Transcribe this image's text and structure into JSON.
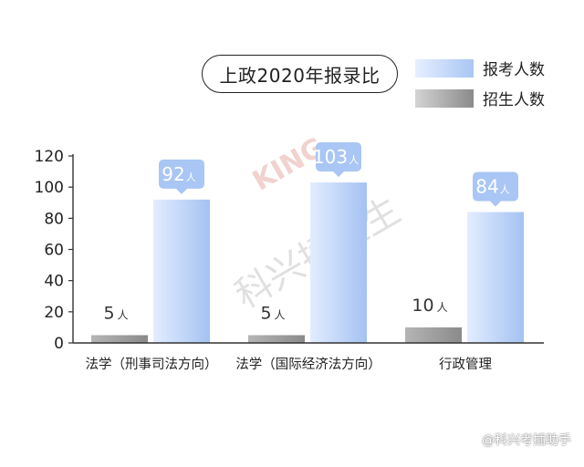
{
  "title": "上政2020年报录比",
  "legend": [
    {
      "label": "报考人数",
      "color": "#a9c6f4"
    },
    {
      "label": "招生人数",
      "color": "#8f8f8f"
    }
  ],
  "watermark": {
    "logo_text": "KING",
    "center_text": "科兴插班生",
    "footer_text": "@科兴考插助手"
  },
  "chart_data": {
    "type": "bar",
    "title": "上政2020年报录比",
    "categories": [
      "法学（刑事司法方向）",
      "法学（国际经济法方向）",
      "行政管理"
    ],
    "series": [
      {
        "name": "招生人数",
        "values": [
          5,
          5,
          10
        ],
        "color": "#8f8f8f"
      },
      {
        "name": "报考人数",
        "values": [
          92,
          103,
          84
        ],
        "color": "#a9c6f4"
      }
    ],
    "unit": "人",
    "ylim": [
      0,
      120
    ],
    "yticks": [
      0,
      20,
      40,
      60,
      80,
      100,
      120
    ],
    "legend_position": "top-right",
    "grid": false
  }
}
